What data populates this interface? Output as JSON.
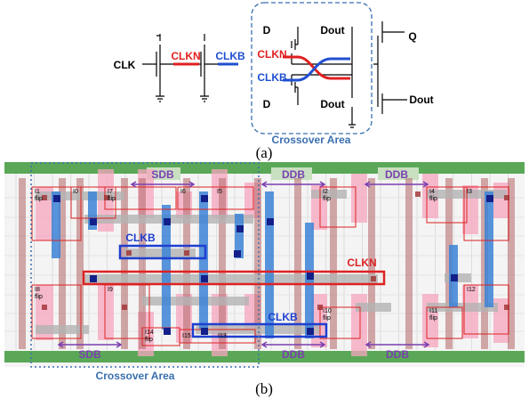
{
  "panel_a": {
    "clk": "CLK",
    "clkn": "CLKN",
    "clkb": "CLKB",
    "d_top": "D",
    "dout_top": "Dout",
    "x_clkn": "CLKN",
    "x_clkb": "CLKB",
    "d_bottom": "D",
    "dout_bottom": "Dout",
    "q": "Q",
    "dout_out": "Dout",
    "area": "Crossover Area",
    "caption": "(a)"
  },
  "panel_b": {
    "top_labels": [
      "SDB",
      "DDB",
      "DDB"
    ],
    "bottom_labels": [
      "SDB",
      "DDB",
      "DDB"
    ],
    "clkb_1": "CLKB",
    "clkn": "CLKN",
    "clkb_2": "CLKB",
    "area": "Crossover Area",
    "caption": "(b)",
    "cells": [
      {
        "id": "I1",
        "sub": "flip"
      },
      {
        "id": "I0"
      },
      {
        "id": "I7",
        "sub": "flip"
      },
      {
        "id": "I6"
      },
      {
        "id": "I5"
      },
      {
        "id": "I2",
        "sub": "flip"
      },
      {
        "id": "I4",
        "sub": "flip"
      },
      {
        "id": "I3"
      },
      {
        "id": "I8",
        "sub": "flip"
      },
      {
        "id": "I9"
      },
      {
        "id": "I14",
        "sub": "flip"
      },
      {
        "id": "I15"
      },
      {
        "id": "I13"
      },
      {
        "id": "I10",
        "sub": "flip"
      },
      {
        "id": "I11",
        "sub": "flip"
      },
      {
        "id": "I12"
      }
    ]
  }
}
